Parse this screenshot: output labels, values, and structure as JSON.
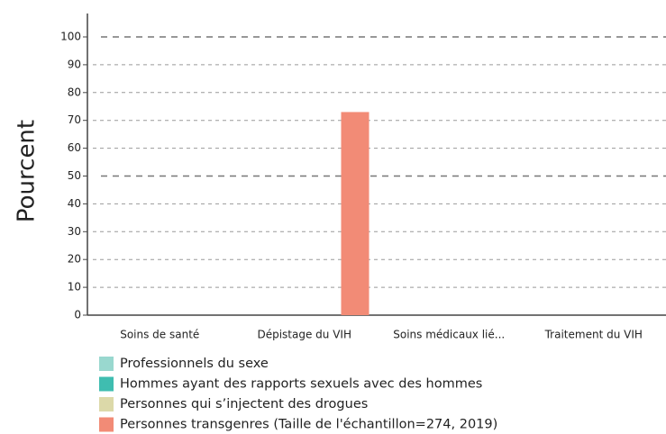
{
  "chart_data": {
    "type": "bar",
    "y_label": "Pourcent",
    "categories": [
      "Soins de santé",
      "Dépistage du VIH",
      "Soins médicaux lié...",
      "Traitement du VIH"
    ],
    "series": [
      {
        "name": "Professionnels du sexe",
        "color": "#99d8cf",
        "values": [
          null,
          null,
          null,
          null
        ]
      },
      {
        "name": "Hommes ayant des rapports sexuels avec des hommes",
        "color": "#3fbdb0",
        "values": [
          null,
          null,
          null,
          null
        ]
      },
      {
        "name": "Personnes qui s’injectent des drogues",
        "color": "#dcd9a9",
        "values": [
          null,
          null,
          null,
          null
        ]
      },
      {
        "name": "Personnes transgenres (Taille de l'échantillon=274, 2019)",
        "color": "#f28b76",
        "values": [
          null,
          73,
          null,
          null
        ]
      }
    ],
    "ylim": [
      0,
      100
    ],
    "yticks": [
      0,
      10,
      20,
      30,
      40,
      50,
      60,
      70,
      80,
      90,
      100
    ],
    "grid": true
  }
}
